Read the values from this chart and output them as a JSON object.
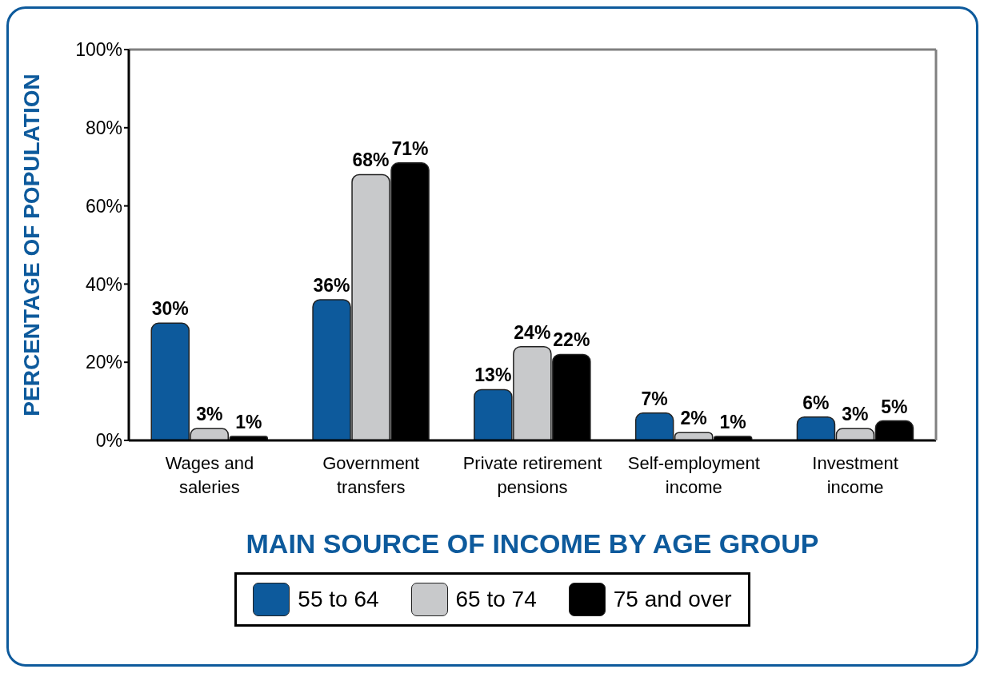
{
  "chart_data": {
    "type": "bar",
    "title": "MAIN SOURCE OF INCOME BY AGE GROUP",
    "ylabel": "PERCENTAGE OF POPULATION",
    "categories": [
      "Wages and saleries",
      "Government transfers",
      "Private retirement pensions",
      "Self-employment income",
      "Investment income"
    ],
    "series": [
      {
        "name": "55 to 64",
        "color": "#0d5a9c",
        "values": [
          30,
          36,
          13,
          7,
          6
        ],
        "value_labels": [
          "30%",
          "36%",
          "13%",
          "7%",
          "6%"
        ]
      },
      {
        "name": "65 to 74",
        "color": "#c8c9cb",
        "values": [
          3,
          68,
          24,
          2,
          3
        ],
        "value_labels": [
          "3%",
          "68%",
          "24%",
          "2%",
          "3%"
        ]
      },
      {
        "name": "75 and over",
        "color": "#000000",
        "values": [
          1,
          71,
          22,
          1,
          5
        ],
        "value_labels": [
          "1%",
          "71%",
          "22%",
          "1%",
          "5%"
        ]
      }
    ],
    "ylim": [
      0,
      100
    ],
    "yticks": [
      {
        "value": 0,
        "label": "0%"
      },
      {
        "value": 20,
        "label": "20%"
      },
      {
        "value": 40,
        "label": "40%"
      },
      {
        "value": 60,
        "label": "60%"
      },
      {
        "value": 80,
        "label": "80%"
      },
      {
        "value": 100,
        "label": "100%"
      }
    ],
    "grid": false,
    "legend": "bottom"
  }
}
